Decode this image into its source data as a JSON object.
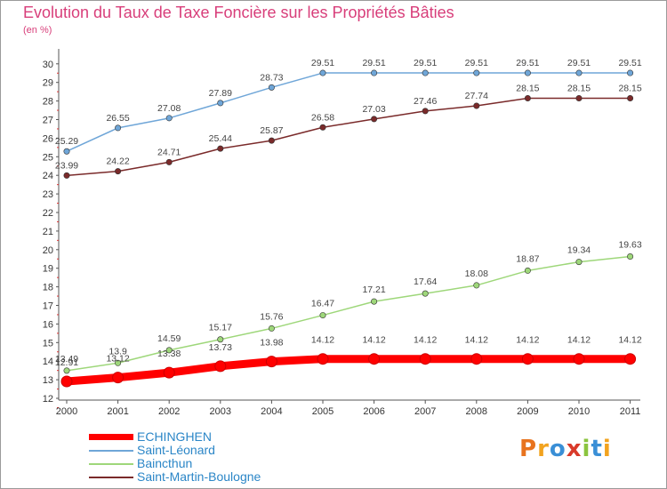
{
  "title": "Evolution du Taux de Taxe Foncière sur les Propriétés Bâties",
  "unit": "(en %)",
  "logo": {
    "text": "Proxiti",
    "colors": [
      "#e8731e",
      "#f2a31f",
      "#3a8fd6",
      "#d93a2a",
      "#8bc43f",
      "#3a8fd6",
      "#f2a31f"
    ]
  },
  "chart_data": {
    "type": "line",
    "x": [
      "2000",
      "2001",
      "2002",
      "2003",
      "2004",
      "2005",
      "2006",
      "2007",
      "2008",
      "2009",
      "2010",
      "2011"
    ],
    "ylim": [
      12,
      30
    ],
    "yticks": [
      "12",
      "13",
      "14",
      "15",
      "16",
      "17",
      "18",
      "19",
      "20",
      "21",
      "22",
      "23",
      "24",
      "25",
      "26",
      "27",
      "28",
      "29",
      "30"
    ],
    "grid": false,
    "legend_position": "bottom-left",
    "series": [
      {
        "name": "ECHINGHEN",
        "color": "#ff0000",
        "values": [
          12.91,
          13.12,
          13.38,
          13.73,
          13.98,
          14.12,
          14.12,
          14.12,
          14.12,
          14.12,
          14.12,
          14.12
        ],
        "labels": [
          "12.91",
          "13.12",
          "13.38",
          "13.73",
          "13.98",
          "14.12",
          "14.12",
          "14.12",
          "14.12",
          "14.12",
          "14.12",
          "14.12"
        ]
      },
      {
        "name": "Saint-Léonard",
        "color": "#6fa6d8",
        "values": [
          25.29,
          26.55,
          27.08,
          27.89,
          28.73,
          29.51,
          29.51,
          29.51,
          29.51,
          29.51,
          29.51,
          29.51
        ],
        "labels": [
          "25.29",
          "26.55",
          "27.08",
          "27.89",
          "28.73",
          "29.51",
          "29.51",
          "29.51",
          "29.51",
          "29.51",
          "29.51",
          "29.51"
        ]
      },
      {
        "name": "Baincthun",
        "color": "#9ed77a",
        "values": [
          13.49,
          13.9,
          14.59,
          15.17,
          15.76,
          16.47,
          17.21,
          17.64,
          18.08,
          18.87,
          19.34,
          19.63
        ],
        "labels": [
          "13.49",
          "13.9",
          "14.59",
          "15.17",
          "15.76",
          "16.47",
          "17.21",
          "17.64",
          "18.08",
          "18.87",
          "19.34",
          "19.63"
        ]
      },
      {
        "name": "Saint-Martin-Boulogne",
        "color": "#7a2a2a",
        "values": [
          23.99,
          24.22,
          24.71,
          25.44,
          25.87,
          26.58,
          27.03,
          27.46,
          27.74,
          28.15,
          28.15,
          28.15
        ],
        "labels": [
          "23.99",
          "24.22",
          "24.71",
          "25.44",
          "25.87",
          "26.58",
          "27.03",
          "27.46",
          "27.74",
          "28.15",
          "28.15",
          "28.15"
        ]
      }
    ]
  }
}
